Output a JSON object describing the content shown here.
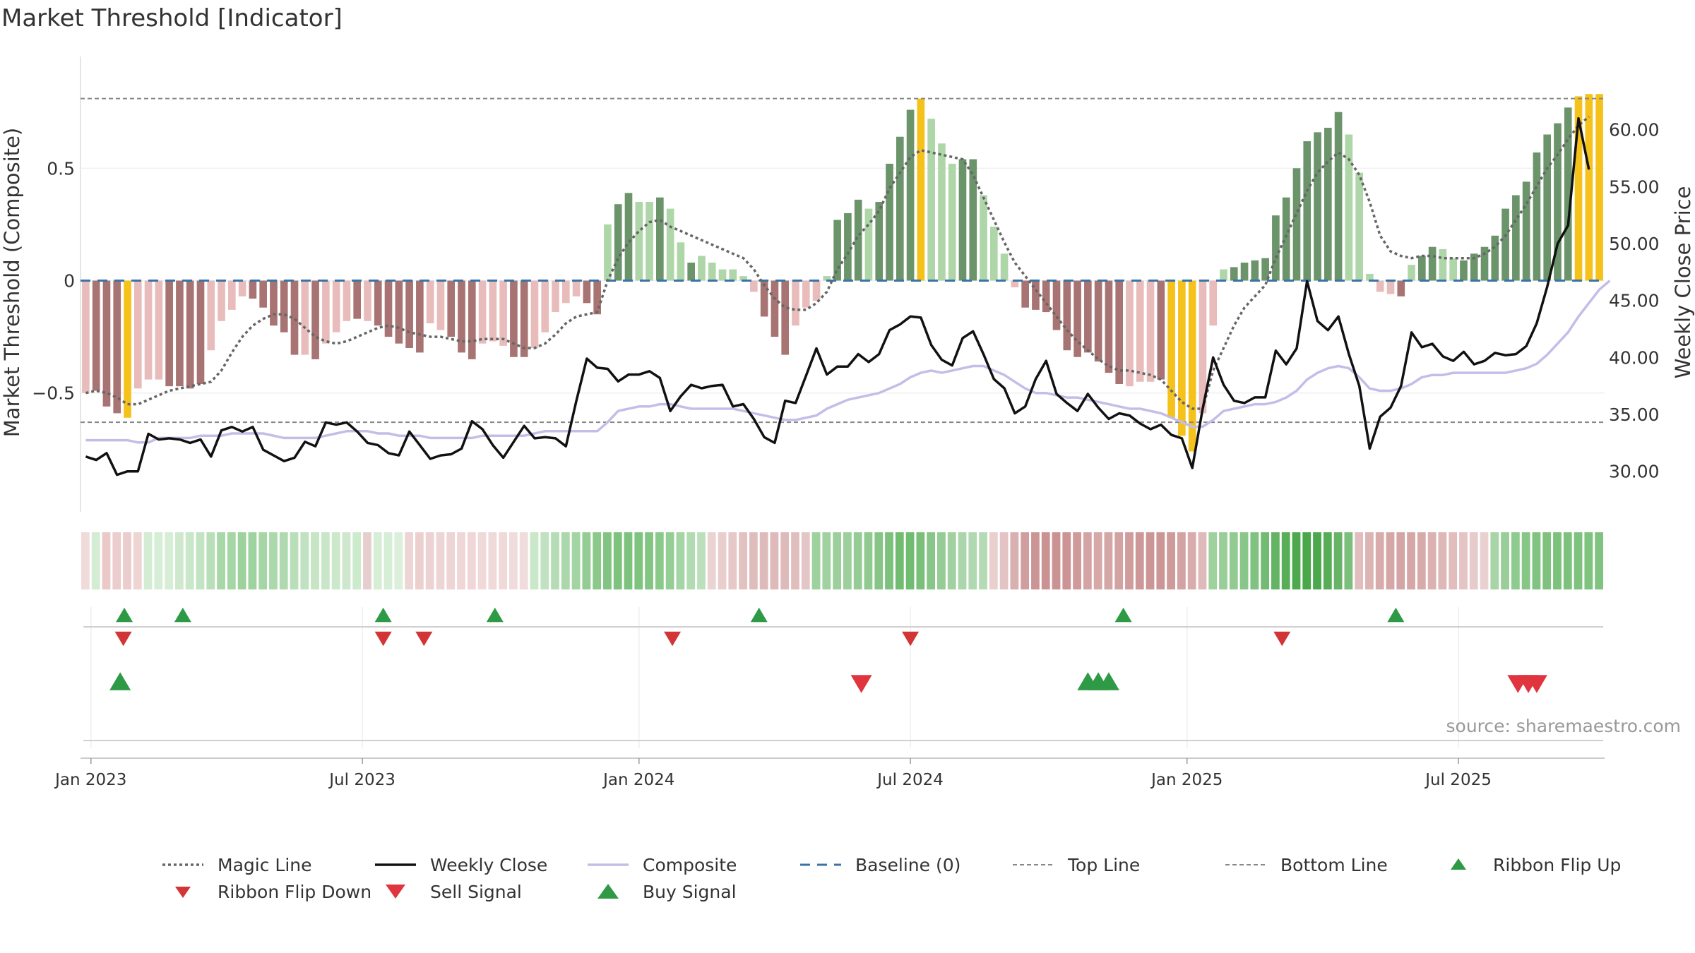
{
  "title": "Market Threshold [Indicator]",
  "source": "source: sharemaestro.com",
  "colors": {
    "bar_strong_green": "#6b946b",
    "bar_light_green": "#aed6a8",
    "bar_strong_red": "#a87373",
    "bar_light_red": "#e9bcbc",
    "bar_yellow": "#f5c21b",
    "weekly_close": "#111111",
    "composite": "#c4bde8",
    "magic_line": "#666666",
    "baseline": "#3a73a8",
    "threshold_line": "#888888",
    "buy_green": "#2e9a46",
    "sell_red": "#d23535"
  },
  "chart_data": {
    "type": "bar",
    "title": "Market Threshold [Indicator]",
    "ylabel": "Market Threshold (Composite)",
    "y2label": "Weekly Close Price",
    "ylim": [
      -0.95,
      0.95
    ],
    "y2lim": [
      28.0,
      65.5
    ],
    "y_ticks": [
      -0.5,
      0,
      0.5
    ],
    "y_tick_labels": [
      "−0.5",
      "0",
      "0.5"
    ],
    "y2_ticks": [
      30,
      35,
      40,
      45,
      50,
      55,
      60
    ],
    "y2_tick_labels": [
      "30.00",
      "35.00",
      "40.00",
      "45.00",
      "50.00",
      "55.00",
      "60.00"
    ],
    "x_ticks": [
      {
        "label": "Jan 2023",
        "week": 1
      },
      {
        "label": "Jul 2023",
        "week": 27
      },
      {
        "label": "Jan 2024",
        "week": 53.5
      },
      {
        "label": "Jul 2024",
        "week": 79.5
      },
      {
        "label": "Jan 2025",
        "week": 106
      },
      {
        "label": "Jul 2025",
        "week": 132
      }
    ],
    "top_line": 0.81,
    "bottom_line": -0.63,
    "baseline": 0,
    "composite_bars": [
      -0.5,
      -0.49,
      -0.56,
      -0.59,
      -0.61,
      -0.48,
      -0.44,
      -0.44,
      -0.47,
      -0.47,
      -0.48,
      -0.46,
      -0.31,
      -0.18,
      -0.13,
      -0.07,
      -0.08,
      -0.12,
      -0.2,
      -0.23,
      -0.33,
      -0.33,
      -0.35,
      -0.28,
      -0.23,
      -0.18,
      -0.17,
      -0.18,
      -0.2,
      -0.25,
      -0.28,
      -0.3,
      -0.32,
      -0.19,
      -0.22,
      -0.25,
      -0.32,
      -0.35,
      -0.28,
      -0.27,
      -0.29,
      -0.34,
      -0.34,
      -0.3,
      -0.23,
      -0.14,
      -0.1,
      -0.07,
      -0.1,
      -0.15,
      0.25,
      0.34,
      0.39,
      0.35,
      0.35,
      0.37,
      0.32,
      0.17,
      0.08,
      0.11,
      0.08,
      0.05,
      0.05,
      0.02,
      -0.05,
      -0.16,
      -0.25,
      -0.33,
      -0.2,
      -0.12,
      -0.09,
      0.02,
      0.27,
      0.3,
      0.36,
      0.32,
      0.35,
      0.52,
      0.64,
      0.76,
      0.81,
      0.72,
      0.61,
      0.52,
      0.54,
      0.54,
      0.38,
      0.24,
      0.12,
      -0.03,
      -0.12,
      -0.13,
      -0.14,
      -0.22,
      -0.31,
      -0.34,
      -0.32,
      -0.36,
      -0.41,
      -0.46,
      -0.47,
      -0.45,
      -0.45,
      -0.44,
      -0.61,
      -0.69,
      -0.76,
      -0.59,
      -0.2,
      0.05,
      0.06,
      0.08,
      0.09,
      0.1,
      0.29,
      0.37,
      0.5,
      0.62,
      0.66,
      0.68,
      0.75,
      0.65,
      0.48,
      0.03,
      -0.05,
      -0.06,
      -0.07,
      0.07,
      0.11,
      0.15,
      0.14,
      0.1,
      0.09,
      0.12,
      0.15,
      0.2,
      0.32,
      0.38,
      0.44,
      0.57,
      0.65,
      0.7,
      0.77,
      0.82,
      0.83,
      0.83
    ],
    "bar_colors": [
      "lr",
      "sr",
      "sr",
      "sr",
      "y",
      "lr",
      "lr",
      "lr",
      "sr",
      "sr",
      "sr",
      "sr",
      "lr",
      "lr",
      "lr",
      "lr",
      "sr",
      "sr",
      "sr",
      "sr",
      "sr",
      "lr",
      "sr",
      "lr",
      "lr",
      "lr",
      "sr",
      "lr",
      "sr",
      "sr",
      "sr",
      "sr",
      "sr",
      "lr",
      "lr",
      "sr",
      "sr",
      "sr",
      "lr",
      "lr",
      "lr",
      "sr",
      "sr",
      "lr",
      "lr",
      "lr",
      "lr",
      "lr",
      "sr",
      "sr",
      "lg",
      "sg",
      "sg",
      "lg",
      "lg",
      "sg",
      "lg",
      "lg",
      "sg",
      "lg",
      "lg",
      "lg",
      "lg",
      "lg",
      "lr",
      "sr",
      "sr",
      "sr",
      "lr",
      "lr",
      "lr",
      "lg",
      "sg",
      "sg",
      "sg",
      "lg",
      "sg",
      "sg",
      "sg",
      "sg",
      "y",
      "lg",
      "lg",
      "lg",
      "sg",
      "sg",
      "lg",
      "lg",
      "lg",
      "lr",
      "sr",
      "sr",
      "sr",
      "sr",
      "sr",
      "sr",
      "sr",
      "sr",
      "sr",
      "sr",
      "lr",
      "lr",
      "lr",
      "sr",
      "y",
      "y",
      "y",
      "lr",
      "lr",
      "lg",
      "sg",
      "sg",
      "sg",
      "sg",
      "sg",
      "sg",
      "sg",
      "sg",
      "sg",
      "sg",
      "sg",
      "lg",
      "lg",
      "lg",
      "lr",
      "lr",
      "sr",
      "lg",
      "sg",
      "sg",
      "lg",
      "lg",
      "sg",
      "sg",
      "sg",
      "sg",
      "sg",
      "sg",
      "sg",
      "sg",
      "sg",
      "sg",
      "sg",
      "y",
      "y",
      "y"
    ],
    "magic_line": [
      -0.5,
      -0.49,
      -0.5,
      -0.52,
      -0.55,
      -0.55,
      -0.53,
      -0.51,
      -0.49,
      -0.48,
      -0.47,
      -0.46,
      -0.45,
      -0.4,
      -0.32,
      -0.25,
      -0.2,
      -0.17,
      -0.15,
      -0.15,
      -0.17,
      -0.21,
      -0.25,
      -0.27,
      -0.28,
      -0.27,
      -0.25,
      -0.23,
      -0.21,
      -0.2,
      -0.21,
      -0.23,
      -0.24,
      -0.25,
      -0.25,
      -0.26,
      -0.27,
      -0.27,
      -0.26,
      -0.26,
      -0.26,
      -0.28,
      -0.3,
      -0.3,
      -0.28,
      -0.24,
      -0.19,
      -0.16,
      -0.15,
      -0.14,
      0.0,
      0.1,
      0.17,
      0.22,
      0.26,
      0.27,
      0.24,
      0.22,
      0.2,
      0.18,
      0.16,
      0.14,
      0.12,
      0.1,
      0.05,
      -0.02,
      -0.08,
      -0.12,
      -0.13,
      -0.13,
      -0.1,
      -0.05,
      0.05,
      0.12,
      0.2,
      0.25,
      0.31,
      0.41,
      0.48,
      0.55,
      0.58,
      0.57,
      0.56,
      0.55,
      0.54,
      0.47,
      0.37,
      0.27,
      0.17,
      0.08,
      0.02,
      -0.04,
      -0.1,
      -0.16,
      -0.22,
      -0.27,
      -0.31,
      -0.35,
      -0.38,
      -0.4,
      -0.4,
      -0.41,
      -0.42,
      -0.44,
      -0.49,
      -0.54,
      -0.57,
      -0.57,
      -0.4,
      -0.3,
      -0.2,
      -0.12,
      -0.07,
      -0.02,
      0.1,
      0.2,
      0.3,
      0.4,
      0.48,
      0.53,
      0.57,
      0.54,
      0.47,
      0.35,
      0.2,
      0.13,
      0.11,
      0.1,
      0.11,
      0.11,
      0.1,
      0.1,
      0.1,
      0.1,
      0.12,
      0.15,
      0.2,
      0.27,
      0.34,
      0.42,
      0.5,
      0.56,
      0.63,
      0.69,
      0.73
    ],
    "composite_line": [
      -0.71,
      -0.71,
      -0.71,
      -0.71,
      -0.71,
      -0.72,
      -0.72,
      -0.7,
      -0.7,
      -0.7,
      -0.7,
      -0.69,
      -0.69,
      -0.69,
      -0.68,
      -0.68,
      -0.68,
      -0.68,
      -0.69,
      -0.7,
      -0.7,
      -0.7,
      -0.7,
      -0.69,
      -0.68,
      -0.67,
      -0.67,
      -0.67,
      -0.68,
      -0.68,
      -0.69,
      -0.69,
      -0.69,
      -0.7,
      -0.7,
      -0.7,
      -0.7,
      -0.7,
      -0.69,
      -0.69,
      -0.69,
      -0.69,
      -0.69,
      -0.68,
      -0.67,
      -0.67,
      -0.67,
      -0.67,
      -0.67,
      -0.67,
      -0.63,
      -0.58,
      -0.57,
      -0.56,
      -0.56,
      -0.55,
      -0.55,
      -0.56,
      -0.57,
      -0.57,
      -0.57,
      -0.57,
      -0.57,
      -0.58,
      -0.59,
      -0.6,
      -0.61,
      -0.62,
      -0.62,
      -0.61,
      -0.6,
      -0.57,
      -0.55,
      -0.53,
      -0.52,
      -0.51,
      -0.5,
      -0.48,
      -0.46,
      -0.43,
      -0.41,
      -0.4,
      -0.41,
      -0.4,
      -0.39,
      -0.38,
      -0.38,
      -0.4,
      -0.42,
      -0.45,
      -0.48,
      -0.5,
      -0.5,
      -0.51,
      -0.52,
      -0.52,
      -0.53,
      -0.54,
      -0.55,
      -0.56,
      -0.57,
      -0.57,
      -0.58,
      -0.59,
      -0.61,
      -0.63,
      -0.65,
      -0.65,
      -0.62,
      -0.58,
      -0.57,
      -0.56,
      -0.55,
      -0.55,
      -0.54,
      -0.52,
      -0.49,
      -0.44,
      -0.41,
      -0.39,
      -0.38,
      -0.39,
      -0.43,
      -0.48,
      -0.49,
      -0.49,
      -0.48,
      -0.46,
      -0.43,
      -0.42,
      -0.42,
      -0.41,
      -0.41,
      -0.41,
      -0.41,
      -0.41,
      -0.41,
      -0.4,
      -0.39,
      -0.37,
      -0.33,
      -0.28,
      -0.23,
      -0.16,
      -0.1,
      -0.04,
      0.0
    ],
    "weekly_close": [
      31.3,
      31.0,
      31.6,
      29.7,
      30.0,
      30.0,
      33.3,
      32.8,
      32.9,
      32.8,
      32.5,
      32.8,
      31.3,
      33.6,
      33.9,
      33.5,
      33.9,
      31.9,
      31.4,
      30.9,
      31.2,
      32.6,
      32.2,
      34.3,
      34.1,
      34.3,
      33.5,
      32.5,
      32.3,
      31.6,
      31.4,
      33.5,
      32.3,
      31.1,
      31.4,
      31.5,
      32.0,
      34.4,
      33.7,
      32.3,
      31.2,
      32.6,
      34.0,
      32.9,
      33.0,
      32.9,
      32.2,
      36.2,
      39.9,
      39.1,
      39.0,
      37.9,
      38.5,
      38.5,
      38.8,
      38.2,
      35.3,
      36.6,
      37.6,
      37.3,
      37.5,
      37.6,
      35.7,
      35.9,
      34.6,
      33.0,
      32.5,
      36.2,
      36.0,
      38.4,
      40.8,
      38.5,
      39.2,
      39.2,
      40.3,
      39.6,
      40.3,
      42.4,
      42.9,
      43.6,
      43.5,
      41.1,
      39.8,
      39.3,
      41.7,
      42.3,
      40.3,
      38.1,
      37.3,
      35.1,
      35.7,
      38.1,
      39.7,
      36.8,
      36.0,
      35.3,
      36.8,
      35.6,
      34.6,
      35.1,
      34.9,
      34.2,
      33.7,
      34.1,
      33.2,
      32.9,
      30.3,
      35.5,
      40.0,
      37.6,
      36.2,
      36.0,
      36.5,
      36.5,
      40.6,
      39.4,
      40.8,
      46.7,
      43.2,
      42.4,
      43.6,
      40.3,
      37.5,
      32.0,
      34.8,
      35.6,
      37.5,
      42.2,
      40.9,
      41.2,
      40.1,
      39.7,
      40.5,
      39.4,
      39.7,
      40.4,
      40.2,
      40.3,
      41.0,
      43.0,
      46.2,
      50.0,
      51.6,
      61.0,
      56.5
    ],
    "ribbon_colors": [
      "#f0dada",
      "#d3ecd3",
      "#ecc9c9",
      "#ebcdcd",
      "#ebcdcd",
      "#efd4d4",
      "#d4ebd4",
      "#d6edd6",
      "#d6edd6",
      "#cee9ce",
      "#c9e7c9",
      "#c3e4c3",
      "#b8dfb8",
      "#a8d8a8",
      "#a5d6a5",
      "#9dd29d",
      "#9ed29e",
      "#a6d6a6",
      "#acd9ac",
      "#afdaaf",
      "#b9dfb9",
      "#c0e2c0",
      "#c5e5c5",
      "#c8e7c8",
      "#cbe8cb",
      "#cde8cd",
      "#ccebcc",
      "#e6cece",
      "#d6edd6",
      "#d6edd6",
      "#dbefdb",
      "#eed5d5",
      "#ecd0d0",
      "#ecd2d2",
      "#eed5d5",
      "#eed5d5",
      "#efd7d7",
      "#efd7d7",
      "#efd9d9",
      "#efd9d9",
      "#efd9d9",
      "#f0dcdc",
      "#f0dcdc",
      "#c9e7c9",
      "#c0e2c0",
      "#b5ddb5",
      "#abd8ab",
      "#a3d4a3",
      "#93cd93",
      "#8bc98b",
      "#82c582",
      "#7dc27d",
      "#7dc27d",
      "#7ec37e",
      "#83c583",
      "#8bc98b",
      "#95ce95",
      "#a4d5a4",
      "#b1dbb1",
      "#bce0bc",
      "#ebd3d3",
      "#e9cece",
      "#e6c8c8",
      "#e2c1c1",
      "#e0bdbd",
      "#dfbaba",
      "#dfbaba",
      "#dfbaba",
      "#e1bebe",
      "#e5c6c6",
      "#9fd19f",
      "#a0d2a0",
      "#9ccf9c",
      "#9ccf9c",
      "#95cc95",
      "#90ca90",
      "#87c587",
      "#7cc17c",
      "#72bc72",
      "#70bc70",
      "#7abf7a",
      "#88c588",
      "#95cb95",
      "#a1d1a1",
      "#abd6ab",
      "#b1d9b1",
      "#b5dbb5",
      "#eacfcf",
      "#e3c3c3",
      "#d9b0b0",
      "#d09e9e",
      "#cc9595",
      "#cb9292",
      "#cb9292",
      "#cc9494",
      "#cf9a9a",
      "#d4a4a4",
      "#d6a8a8",
      "#d5a6a6",
      "#d3a2a2",
      "#d09c9c",
      "#ce9898",
      "#cd9696",
      "#cd9696",
      "#cf9a9a",
      "#d3a2a2",
      "#d8acac",
      "#dfbaba",
      "#9fd19f",
      "#99ce99",
      "#92ca92",
      "#89c689",
      "#80c280",
      "#72bb72",
      "#63b463",
      "#57ae57",
      "#4ea94e",
      "#4aa74a",
      "#4ca84c",
      "#56ad56",
      "#67b467",
      "#7cbf7c",
      "#e1bdbd",
      "#ddb4b4",
      "#d9acac",
      "#d6a7a7",
      "#d5a5a5",
      "#d6a7a7",
      "#d8abab",
      "#dbb1b1",
      "#deb7b7",
      "#e1bdbd",
      "#e4c4c4",
      "#e7caca",
      "#ead1d1",
      "#a7d5a7",
      "#99ce99",
      "#8ecb8e",
      "#86c786",
      "#81c481",
      "#7ec27e",
      "#7cc17c",
      "#7cc17c",
      "#7dc27d",
      "#7ec37e",
      "#80c380"
    ],
    "ribbon_flip_up": [
      3.7,
      9.3,
      28.5,
      39.2,
      64.5,
      99.4,
      125.5
    ],
    "ribbon_flip_down": [
      3.6,
      28.5,
      32.4,
      56.2,
      79.0,
      114.6
    ],
    "buy_signal": [
      3.3,
      96.0,
      97.0,
      98.0
    ],
    "sell_signal": [
      74.3,
      137.2,
      138.2,
      139.0
    ],
    "legend": [
      {
        "label": "Magic Line",
        "symbol": "dotted"
      },
      {
        "label": "Weekly Close",
        "symbol": "solid-black"
      },
      {
        "label": "Composite",
        "symbol": "solid-lavender"
      },
      {
        "label": "Baseline (0)",
        "symbol": "dashed-blue"
      },
      {
        "label": "Top Line",
        "symbol": "dashed-grey"
      },
      {
        "label": "Bottom Line",
        "symbol": "dashed-grey"
      },
      {
        "label": "Ribbon Flip Up",
        "symbol": "tri-up-small"
      },
      {
        "label": "Ribbon Flip Down",
        "symbol": "tri-down-small"
      },
      {
        "label": "Sell Signal",
        "symbol": "tri-down-large"
      },
      {
        "label": "Buy Signal",
        "symbol": "tri-up-large"
      }
    ]
  }
}
